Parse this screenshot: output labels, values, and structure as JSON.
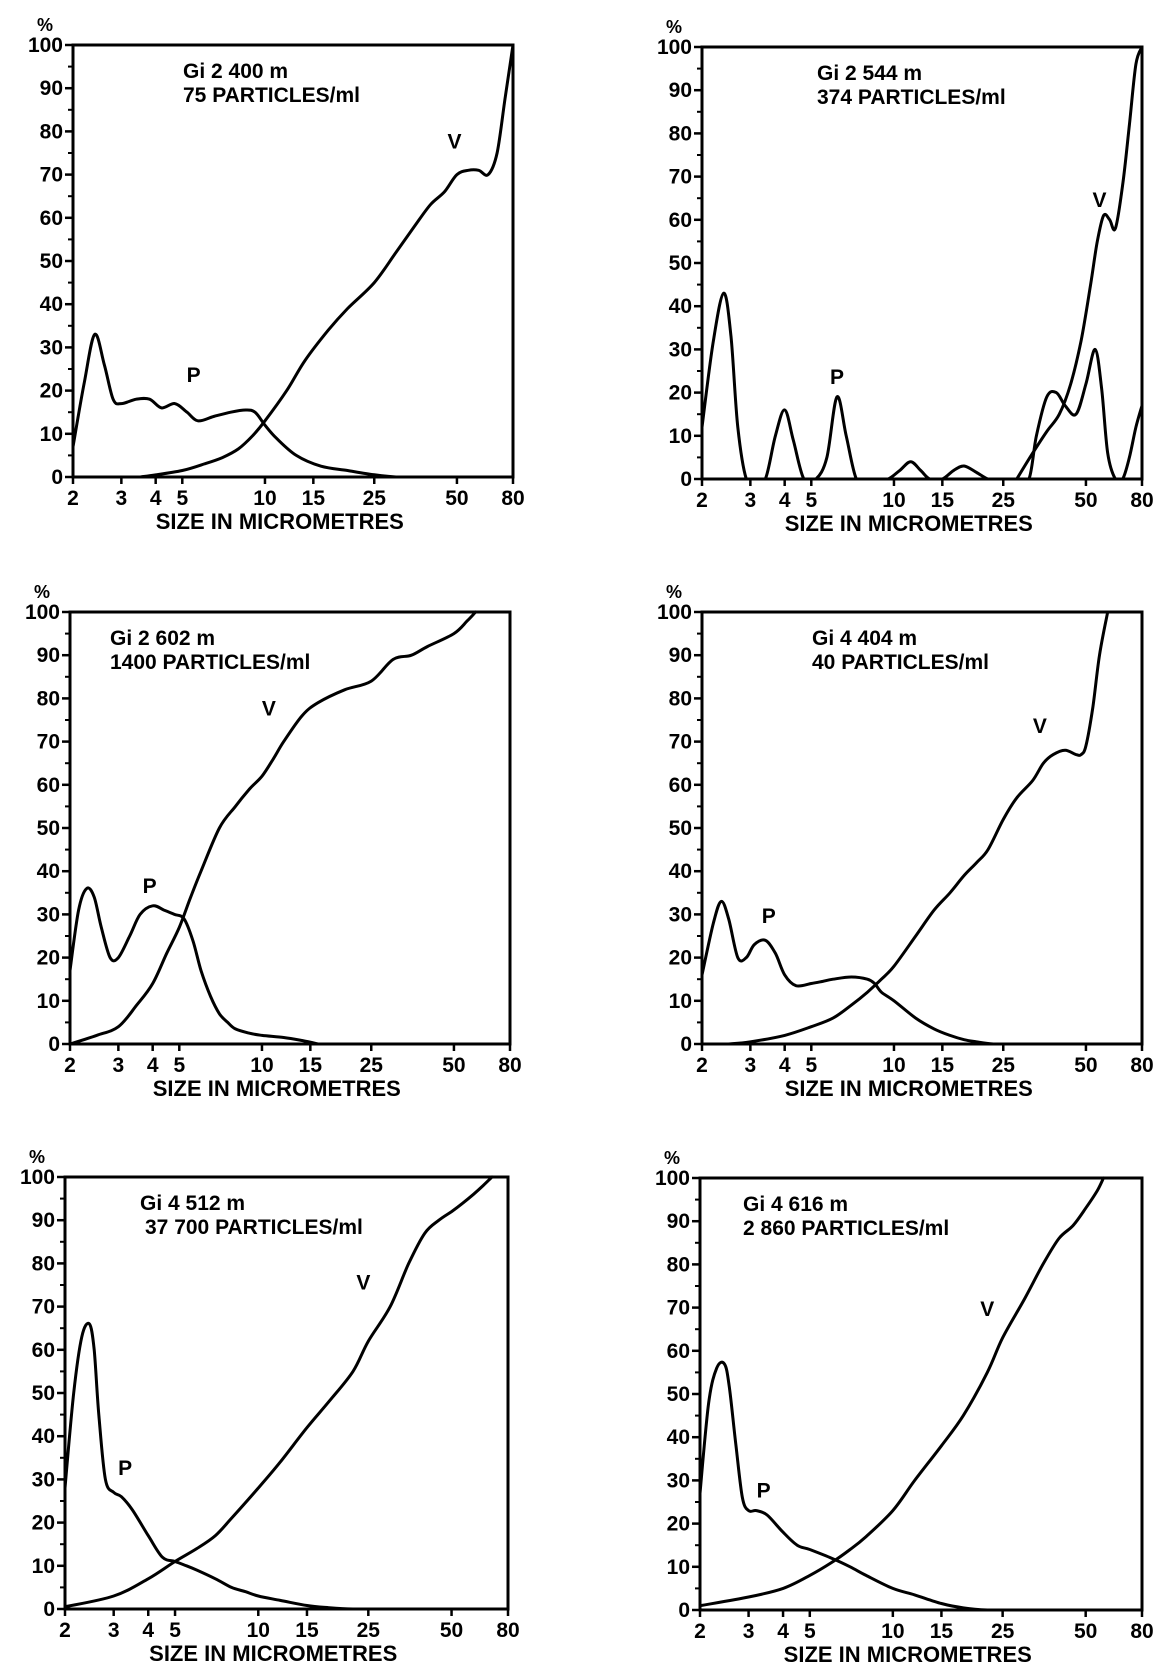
{
  "figure": {
    "y_unit": "%",
    "y_ticks": [
      "0",
      "10",
      "20",
      "30",
      "40",
      "50",
      "60",
      "70",
      "80",
      "90",
      "100"
    ],
    "x_ticks": [
      "2",
      "3",
      "4",
      "5",
      "10",
      "15",
      "25",
      "50",
      "80"
    ]
  },
  "chart_data": [
    {
      "type": "line",
      "title_line1": "Gi 2  400 m",
      "title_line2": "75 PARTICLES/ml",
      "xlabel": "SIZE IN MICROMETRES",
      "ylabel": "%",
      "x_scale": "log",
      "xlim": [
        2,
        80
      ],
      "ylim": [
        0,
        100
      ],
      "series": [
        {
          "name": "P",
          "x": [
            2,
            2.2,
            2.4,
            2.6,
            2.8,
            3,
            3.4,
            3.8,
            4.2,
            4.7,
            5.2,
            5.7,
            6.5,
            7.5,
            8.5,
            9.2,
            10,
            11,
            13,
            16,
            20,
            25,
            30,
            35
          ],
          "y": [
            7,
            22,
            33,
            26,
            18,
            17,
            18,
            18,
            16,
            17,
            15,
            13,
            14,
            15,
            15.5,
            15,
            12,
            9,
            5,
            2.5,
            1.5,
            0.5,
            0,
            0
          ]
        },
        {
          "name": "V",
          "x": [
            3.5,
            4,
            5,
            6,
            7,
            8,
            9,
            10,
            12,
            14,
            17,
            20,
            25,
            30,
            35,
            40,
            45,
            50,
            55,
            60,
            65,
            70,
            75,
            80
          ],
          "y": [
            0,
            0.5,
            1.5,
            3,
            4.5,
            6.5,
            9.5,
            13,
            20,
            27,
            34,
            39,
            45,
            52,
            58,
            63,
            66,
            70,
            71,
            71,
            70,
            75,
            88,
            100
          ]
        }
      ],
      "curve_labels": [
        {
          "text": "P",
          "x": 5.5,
          "y": 22
        },
        {
          "text": "V",
          "x": 49,
          "y": 76
        }
      ]
    },
    {
      "type": "line",
      "title_line1": "Gi 2  544 m",
      "title_line2": "374 PARTICLES/ml",
      "xlabel": "SIZE IN MICROMETRES",
      "ylabel": "%",
      "x_scale": "log",
      "xlim": [
        2,
        80
      ],
      "ylim": [
        0,
        100
      ],
      "series": [
        {
          "name": "P",
          "x": [
            2,
            2.2,
            2.4,
            2.55,
            2.7,
            2.9,
            3.1,
            3.4,
            3.7,
            4,
            4.3,
            4.7,
            5.2,
            5.7,
            6.2,
            6.7,
            7.3,
            8,
            8.5,
            9.5,
            10.5,
            11.5,
            12.5,
            13.5,
            15,
            16.5,
            18,
            20,
            22,
            24,
            28,
            31,
            33,
            36,
            39,
            42,
            46,
            50,
            54,
            57,
            60,
            64,
            68,
            72,
            76,
            80
          ],
          "y": [
            12,
            32,
            43,
            33,
            12,
            0,
            0,
            0,
            10,
            16,
            9,
            0,
            0,
            5,
            19,
            10,
            0,
            0,
            0,
            0,
            2,
            4,
            2,
            0,
            0,
            2,
            3,
            1.5,
            0,
            0,
            0,
            0,
            10,
            19,
            20,
            17,
            15,
            22,
            30,
            21,
            6,
            0,
            0,
            5,
            12,
            17
          ]
        },
        {
          "name": "V",
          "x": [
            28,
            32,
            36,
            40,
            44,
            48,
            52,
            55,
            58,
            61,
            64,
            68,
            72,
            76,
            80
          ],
          "y": [
            0,
            6,
            11,
            15,
            22,
            32,
            45,
            55,
            61,
            60,
            58,
            68,
            82,
            96,
            100
          ]
        }
      ],
      "curve_labels": [
        {
          "text": "P",
          "x": 6.2,
          "y": 22
        },
        {
          "text": "V",
          "x": 56,
          "y": 63
        }
      ]
    },
    {
      "type": "line",
      "title_line1": "Gi 2  602 m",
      "title_line2": "1400 PARTICLES/ml",
      "xlabel": "SIZE IN MICROMETRES",
      "ylabel": "%",
      "x_scale": "log",
      "xlim": [
        2,
        80
      ],
      "ylim": [
        0,
        100
      ],
      "series": [
        {
          "name": "P",
          "x": [
            2,
            2.15,
            2.3,
            2.45,
            2.6,
            2.8,
            3,
            3.3,
            3.6,
            4,
            4.4,
            4.8,
            5.2,
            5.6,
            6,
            6.5,
            7,
            7.5,
            8,
            9,
            10,
            12,
            14,
            16
          ],
          "y": [
            17,
            31,
            36,
            34,
            27,
            20,
            20,
            25,
            30,
            32,
            31,
            30,
            29,
            24,
            17,
            11,
            7,
            5,
            3.5,
            2.5,
            2,
            1.5,
            0.8,
            0
          ]
        },
        {
          "name": "V",
          "x": [
            2,
            2.5,
            3,
            3.5,
            4,
            4.5,
            5,
            5.5,
            6,
            7,
            8,
            9,
            10,
            11,
            12,
            14,
            16,
            20,
            25,
            30,
            35,
            40,
            50,
            56,
            60
          ],
          "y": [
            0,
            2,
            4,
            9,
            14,
            21,
            27,
            34,
            40,
            50,
            55,
            59,
            62,
            66,
            70,
            76,
            79,
            82,
            84,
            89,
            90,
            92,
            95,
            98,
            100
          ]
        }
      ],
      "curve_labels": [
        {
          "text": "P",
          "x": 3.9,
          "y": 35
        },
        {
          "text": "V",
          "x": 10.6,
          "y": 76
        }
      ]
    },
    {
      "type": "line",
      "title_line1": "Gi 4  404 m",
      "title_line2": "40 PARTICLES/ml",
      "xlabel": "SIZE IN MICROMETRES",
      "ylabel": "%",
      "x_scale": "log",
      "xlim": [
        2,
        80
      ],
      "ylim": [
        0,
        100
      ],
      "series": [
        {
          "name": "P",
          "x": [
            2,
            2.2,
            2.35,
            2.5,
            2.7,
            2.9,
            3.1,
            3.4,
            3.7,
            4,
            4.4,
            5,
            5.5,
            6,
            7,
            8,
            8.5,
            9,
            10,
            12,
            14,
            16,
            18,
            20,
            23,
            28
          ],
          "y": [
            16,
            28,
            33,
            29,
            20,
            20,
            23,
            24,
            21,
            16,
            13.5,
            14,
            14.5,
            15,
            15.5,
            15,
            14,
            12,
            10,
            6,
            3.5,
            2,
            1,
            0.5,
            0,
            0
          ]
        },
        {
          "name": "V",
          "x": [
            2.5,
            3,
            4,
            5,
            6,
            7,
            8,
            9,
            10,
            12,
            14,
            16,
            18,
            20,
            22,
            25,
            28,
            32,
            35,
            38,
            42,
            46,
            48,
            50,
            53,
            56,
            60
          ],
          "y": [
            0,
            0.5,
            2,
            4,
            6,
            9,
            12,
            15,
            18,
            25,
            31,
            35,
            39,
            42,
            45,
            52,
            57,
            61,
            65,
            67,
            68,
            67,
            67,
            69,
            78,
            90,
            100
          ]
        }
      ],
      "curve_labels": [
        {
          "text": "P",
          "x": 3.5,
          "y": 28
        },
        {
          "text": "V",
          "x": 34,
          "y": 72
        }
      ]
    },
    {
      "type": "line",
      "title_line1": "Gi 4  512 m",
      "title_line2": "37 700 PARTICLES/ml",
      "xlabel": "SIZE IN MICROMETRES",
      "ylabel": "%",
      "x_scale": "log",
      "xlim": [
        2,
        80
      ],
      "ylim": [
        0,
        100
      ],
      "series": [
        {
          "name": "P",
          "x": [
            2,
            2.15,
            2.3,
            2.45,
            2.55,
            2.65,
            2.8,
            3,
            3.2,
            3.5,
            4,
            4.5,
            5,
            5.5,
            6,
            7,
            8,
            9,
            10,
            12,
            15,
            18,
            22,
            30
          ],
          "y": [
            28,
            50,
            63,
            66,
            60,
            45,
            30,
            27,
            26,
            23,
            17,
            12,
            11,
            10,
            9,
            7,
            5,
            4,
            3,
            2,
            0.8,
            0.3,
            0,
            0
          ]
        },
        {
          "name": "V",
          "x": [
            2,
            3,
            4,
            5,
            6,
            7,
            8,
            10,
            12,
            15,
            18,
            22,
            25,
            30,
            35,
            40,
            45,
            50,
            55,
            60,
            65,
            70
          ],
          "y": [
            0.5,
            3,
            7,
            11,
            14,
            17,
            21,
            28,
            34,
            42,
            48,
            55,
            62,
            70,
            80,
            87,
            90,
            92,
            94,
            96,
            98,
            100
          ]
        }
      ],
      "curve_labels": [
        {
          "text": "P",
          "x": 3.3,
          "y": 31
        },
        {
          "text": "V",
          "x": 24,
          "y": 74
        }
      ]
    },
    {
      "type": "line",
      "title_line1": "Gi 4  616 m",
      "title_line2": "2 860 PARTICLES/ml",
      "xlabel": "SIZE IN MICROMETRES",
      "ylabel": "%",
      "x_scale": "log",
      "xlim": [
        2,
        80
      ],
      "ylim": [
        0,
        100
      ],
      "series": [
        {
          "name": "P",
          "x": [
            2,
            2.15,
            2.3,
            2.45,
            2.55,
            2.7,
            2.85,
            3,
            3.2,
            3.5,
            4,
            4.5,
            5,
            6,
            7,
            8,
            10,
            12,
            15,
            18,
            22,
            28
          ],
          "y": [
            27,
            48,
            56,
            57,
            52,
            38,
            26,
            23,
            23,
            22,
            18,
            15,
            14,
            12,
            10,
            8,
            5,
            3.5,
            1.5,
            0.5,
            0,
            0
          ]
        },
        {
          "name": "V",
          "x": [
            2,
            3,
            4,
            5,
            6,
            7,
            8,
            10,
            12,
            15,
            18,
            22,
            25,
            30,
            35,
            40,
            45,
            50,
            55,
            58
          ],
          "y": [
            1,
            3,
            5,
            8,
            11,
            14,
            17,
            23,
            30,
            38,
            45,
            55,
            63,
            72,
            80,
            86,
            89,
            93,
            97,
            100
          ]
        }
      ],
      "curve_labels": [
        {
          "text": "P",
          "x": 3.4,
          "y": 26
        },
        {
          "text": "V",
          "x": 22,
          "y": 68
        }
      ]
    }
  ]
}
